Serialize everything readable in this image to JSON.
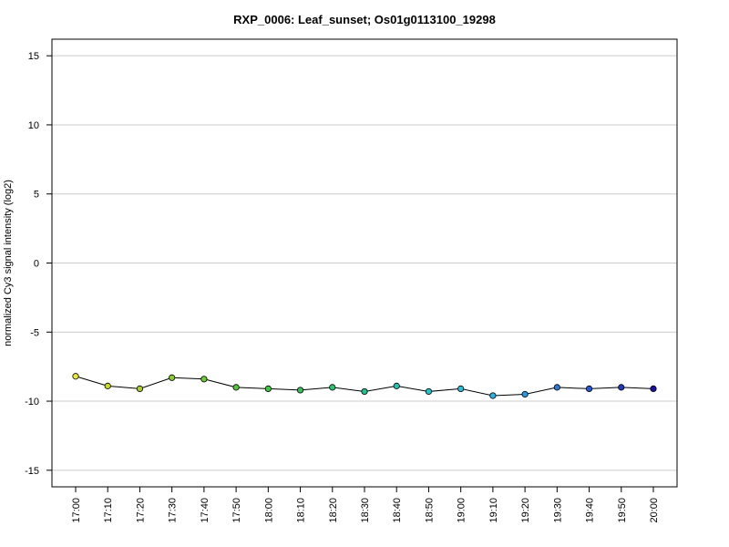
{
  "chart_data": {
    "type": "line",
    "title": "RXP_0006: Leaf_sunset; Os01g0113100_19298",
    "xlabel": "",
    "ylabel": "normalized Cy3 signal intensity (log2)",
    "ylim": [
      -16.2,
      16.2
    ],
    "yticks": [
      15,
      10,
      5,
      0,
      -5,
      -10,
      -15
    ],
    "grid": "horizontal",
    "categories": [
      "17:00",
      "17:10",
      "17:20",
      "17:30",
      "17:40",
      "17:50",
      "18:00",
      "18:10",
      "18:20",
      "18:30",
      "18:40",
      "18:50",
      "19:00",
      "19:10",
      "19:20",
      "19:30",
      "19:40",
      "19:50",
      "20:00"
    ],
    "series": [
      {
        "values": [
          -8.2,
          -8.9,
          -9.1,
          -8.3,
          -8.4,
          -9.0,
          -9.1,
          -9.2,
          -9.0,
          -9.3,
          -8.9,
          -9.3,
          -9.1,
          -9.6,
          -9.5,
          -9.0,
          -9.1,
          -9.0,
          -9.1
        ],
        "point_colors": [
          "#e8e83a",
          "#c8d828",
          "#a8d020",
          "#88cc2a",
          "#6ccc30",
          "#52c838",
          "#3cc840",
          "#30c658",
          "#28c474",
          "#22c290",
          "#20c2b0",
          "#22c4c8",
          "#26c0d8",
          "#2ab2e0",
          "#2a98e0",
          "#2a78d8",
          "#2858d0",
          "#2238c0",
          "#1a10a8"
        ]
      }
    ]
  }
}
